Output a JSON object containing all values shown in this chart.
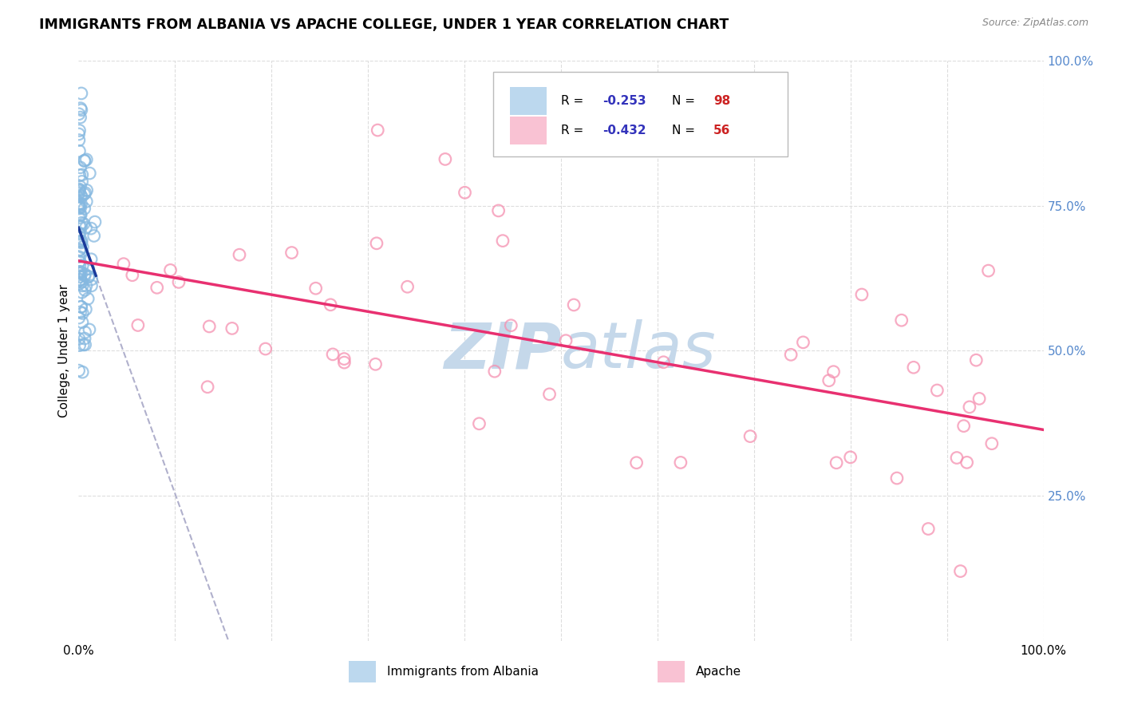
{
  "title": "IMMIGRANTS FROM ALBANIA VS APACHE COLLEGE, UNDER 1 YEAR CORRELATION CHART",
  "source": "Source: ZipAtlas.com",
  "ylabel_label": "College, Under 1 year",
  "legend_R_color": "#3333bb",
  "legend_N_color": "#cc2222",
  "grid_color": "#dddddd",
  "watermark_zip": "ZIP",
  "watermark_atlas": "atlas",
  "watermark_color": "#c5d8ea",
  "scatter_blue_color": "#85b8e0",
  "scatter_pink_color": "#f590b0",
  "line_blue_color": "#1a3a9a",
  "line_pink_color": "#e83070",
  "line_dashed_color": "#b0b0cc",
  "background_color": "#ffffff",
  "right_axis_color": "#5588cc",
  "title_fontsize": 12.5,
  "label_fontsize": 11,
  "tick_fontsize": 11
}
